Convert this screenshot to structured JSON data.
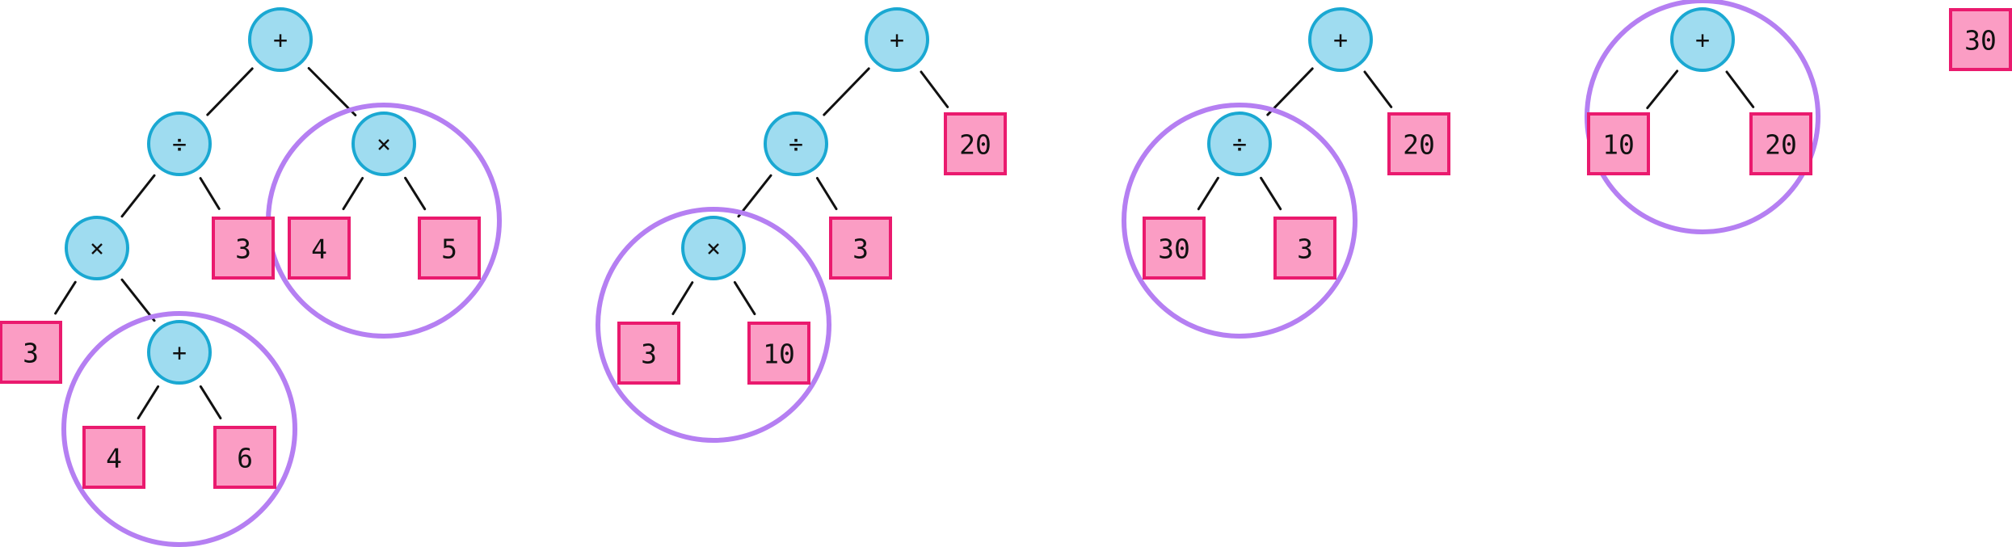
{
  "colors": {
    "operator_fill": "#9fdcf0",
    "operator_stroke": "#1aa8d2",
    "leaf_fill": "#fb9dc4",
    "leaf_stroke": "#ea1a6e",
    "highlight": "#b57ff2",
    "edge": "#111111",
    "text": "#111111"
  },
  "trees": [
    {
      "root": {
        "label": "+",
        "children": [
          {
            "label": "÷",
            "children": [
              {
                "label": "×",
                "children": [
                  {
                    "label": "3"
                  },
                  {
                    "label": "+",
                    "highlight": true,
                    "children": [
                      {
                        "label": "4"
                      },
                      {
                        "label": "6"
                      }
                    ]
                  }
                ]
              },
              {
                "label": "3"
              }
            ]
          },
          {
            "label": "×",
            "highlight": true,
            "children": [
              {
                "label": "4"
              },
              {
                "label": "5"
              }
            ]
          }
        ]
      }
    },
    {
      "root": {
        "label": "+",
        "children": [
          {
            "label": "÷",
            "children": [
              {
                "label": "×",
                "highlight": true,
                "children": [
                  {
                    "label": "3"
                  },
                  {
                    "label": "10"
                  }
                ]
              },
              {
                "label": "3"
              }
            ]
          },
          {
            "label": "20"
          }
        ]
      }
    },
    {
      "root": {
        "label": "+",
        "children": [
          {
            "label": "÷",
            "highlight": true,
            "children": [
              {
                "label": "30"
              },
              {
                "label": "3"
              }
            ]
          },
          {
            "label": "20"
          }
        ]
      }
    },
    {
      "root": {
        "label": "+",
        "highlight": true,
        "children": [
          {
            "label": "10"
          },
          {
            "label": "20"
          }
        ]
      }
    },
    {
      "root": {
        "label": "30"
      }
    }
  ]
}
